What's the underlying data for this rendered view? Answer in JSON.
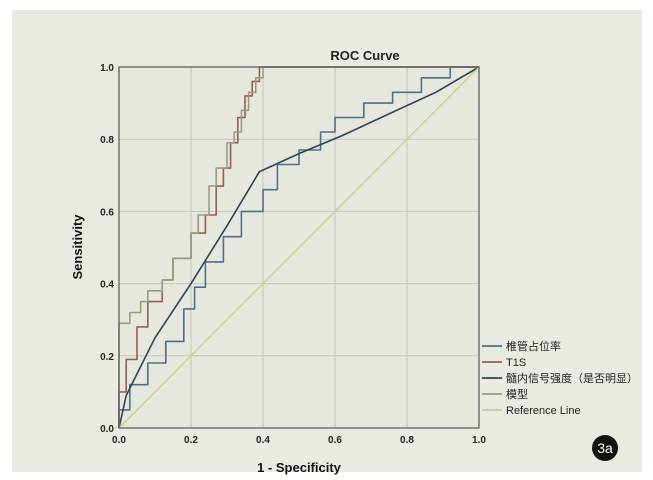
{
  "figure_badge": "3a",
  "chart_data": {
    "type": "line",
    "title": "ROC Curve",
    "xlabel": "1 - Specificity",
    "ylabel": "Sensitivity",
    "xlim": [
      0,
      1
    ],
    "ylim": [
      0,
      1
    ],
    "xticks": [
      "0.0",
      "0.2",
      "0.4",
      "0.6",
      "0.8",
      "1.0"
    ],
    "yticks": [
      "0.0",
      "0.2",
      "0.4",
      "0.6",
      "0.8",
      "1.0"
    ],
    "grid": true,
    "legend_position": "bottom-right",
    "series": [
      {
        "name": "椎管占位率",
        "color": "#4c6f8c",
        "points": [
          [
            0,
            0
          ],
          [
            0,
            0.05
          ],
          [
            0.03,
            0.05
          ],
          [
            0.03,
            0.12
          ],
          [
            0.08,
            0.12
          ],
          [
            0.08,
            0.18
          ],
          [
            0.13,
            0.18
          ],
          [
            0.13,
            0.24
          ],
          [
            0.18,
            0.24
          ],
          [
            0.18,
            0.33
          ],
          [
            0.21,
            0.33
          ],
          [
            0.21,
            0.39
          ],
          [
            0.24,
            0.39
          ],
          [
            0.24,
            0.46
          ],
          [
            0.29,
            0.46
          ],
          [
            0.29,
            0.53
          ],
          [
            0.34,
            0.53
          ],
          [
            0.34,
            0.6
          ],
          [
            0.4,
            0.6
          ],
          [
            0.4,
            0.66
          ],
          [
            0.44,
            0.66
          ],
          [
            0.44,
            0.73
          ],
          [
            0.5,
            0.73
          ],
          [
            0.5,
            0.77
          ],
          [
            0.56,
            0.77
          ],
          [
            0.56,
            0.82
          ],
          [
            0.6,
            0.82
          ],
          [
            0.6,
            0.86
          ],
          [
            0.68,
            0.86
          ],
          [
            0.68,
            0.9
          ],
          [
            0.76,
            0.9
          ],
          [
            0.76,
            0.93
          ],
          [
            0.84,
            0.93
          ],
          [
            0.84,
            0.97
          ],
          [
            0.92,
            0.97
          ],
          [
            0.92,
            1
          ],
          [
            1,
            1
          ]
        ]
      },
      {
        "name": "T1S",
        "color": "#9b5b55",
        "points": [
          [
            0,
            0
          ],
          [
            0,
            0.1
          ],
          [
            0.02,
            0.1
          ],
          [
            0.02,
            0.19
          ],
          [
            0.05,
            0.19
          ],
          [
            0.05,
            0.28
          ],
          [
            0.08,
            0.28
          ],
          [
            0.08,
            0.35
          ],
          [
            0.12,
            0.35
          ],
          [
            0.12,
            0.41
          ],
          [
            0.15,
            0.41
          ],
          [
            0.15,
            0.47
          ],
          [
            0.2,
            0.47
          ],
          [
            0.2,
            0.54
          ],
          [
            0.24,
            0.54
          ],
          [
            0.24,
            0.59
          ],
          [
            0.27,
            0.59
          ],
          [
            0.27,
            0.67
          ],
          [
            0.29,
            0.67
          ],
          [
            0.29,
            0.72
          ],
          [
            0.31,
            0.72
          ],
          [
            0.31,
            0.79
          ],
          [
            0.33,
            0.79
          ],
          [
            0.33,
            0.86
          ],
          [
            0.35,
            0.86
          ],
          [
            0.35,
            0.92
          ],
          [
            0.37,
            0.92
          ],
          [
            0.37,
            0.96
          ],
          [
            0.39,
            0.96
          ],
          [
            0.39,
            1
          ],
          [
            1,
            1
          ]
        ]
      },
      {
        "name": "髓内信号强度（是否明显）",
        "color": "#2f4254",
        "points": [
          [
            0,
            0
          ],
          [
            0.02,
            0.09
          ],
          [
            0.1,
            0.25
          ],
          [
            0.2,
            0.4
          ],
          [
            0.3,
            0.56
          ],
          [
            0.39,
            0.71
          ],
          [
            0.5,
            0.76
          ],
          [
            0.62,
            0.81
          ],
          [
            0.75,
            0.87
          ],
          [
            0.88,
            0.93
          ],
          [
            1,
            1
          ]
        ]
      },
      {
        "name": "模型",
        "color": "#9a9c82",
        "points": [
          [
            0,
            0
          ],
          [
            0,
            0.29
          ],
          [
            0.03,
            0.29
          ],
          [
            0.03,
            0.32
          ],
          [
            0.06,
            0.32
          ],
          [
            0.06,
            0.35
          ],
          [
            0.08,
            0.35
          ],
          [
            0.08,
            0.38
          ],
          [
            0.12,
            0.38
          ],
          [
            0.12,
            0.41
          ],
          [
            0.15,
            0.41
          ],
          [
            0.15,
            0.47
          ],
          [
            0.2,
            0.47
          ],
          [
            0.2,
            0.54
          ],
          [
            0.22,
            0.54
          ],
          [
            0.22,
            0.59
          ],
          [
            0.25,
            0.59
          ],
          [
            0.25,
            0.67
          ],
          [
            0.27,
            0.67
          ],
          [
            0.27,
            0.72
          ],
          [
            0.3,
            0.72
          ],
          [
            0.3,
            0.79
          ],
          [
            0.32,
            0.79
          ],
          [
            0.32,
            0.82
          ],
          [
            0.34,
            0.82
          ],
          [
            0.34,
            0.88
          ],
          [
            0.36,
            0.88
          ],
          [
            0.36,
            0.93
          ],
          [
            0.38,
            0.93
          ],
          [
            0.38,
            0.97
          ],
          [
            0.4,
            0.97
          ],
          [
            0.4,
            1
          ],
          [
            1,
            1
          ]
        ]
      },
      {
        "name": "Reference Line",
        "color": "#c9cf8a",
        "points": [
          [
            0,
            0
          ],
          [
            1,
            1
          ]
        ]
      }
    ]
  }
}
